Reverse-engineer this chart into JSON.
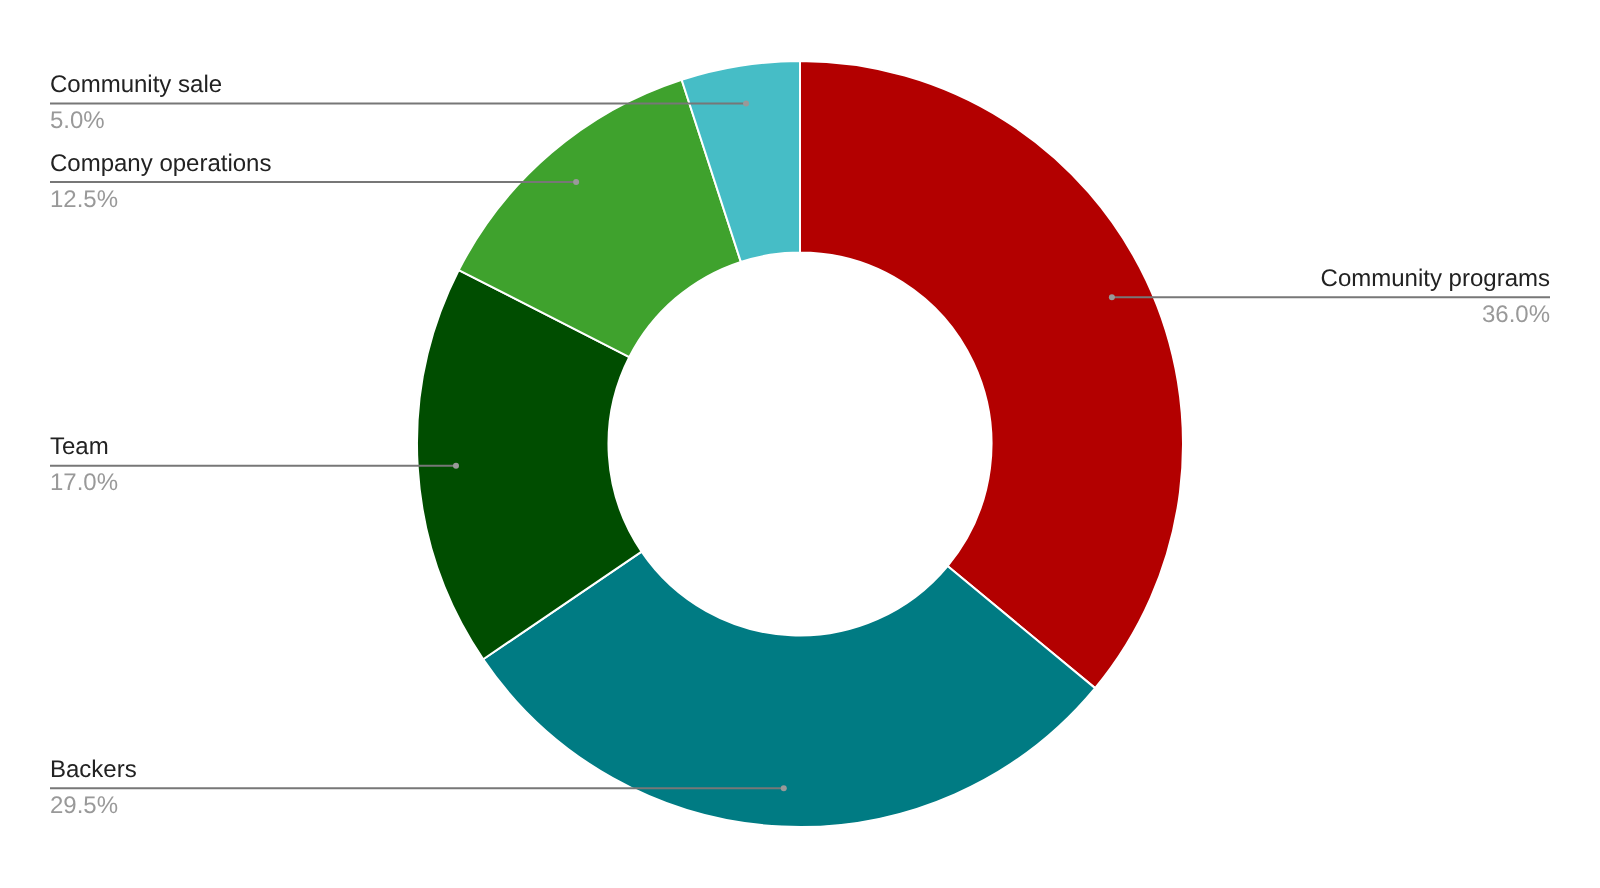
{
  "chart_data": {
    "type": "donut",
    "categories": [
      "Community programs",
      "Backers",
      "Team",
      "Company operations",
      "Community sale"
    ],
    "values": [
      36.0,
      29.5,
      17.0,
      12.5,
      5.0
    ],
    "colors": [
      "#b30000",
      "#007b83",
      "#004d00",
      "#3fa22d",
      "#46bdc6"
    ],
    "value_labels": [
      "36.0%",
      "29.5%",
      "17.0%",
      "12.5%",
      "5.0%"
    ],
    "legend": false
  }
}
